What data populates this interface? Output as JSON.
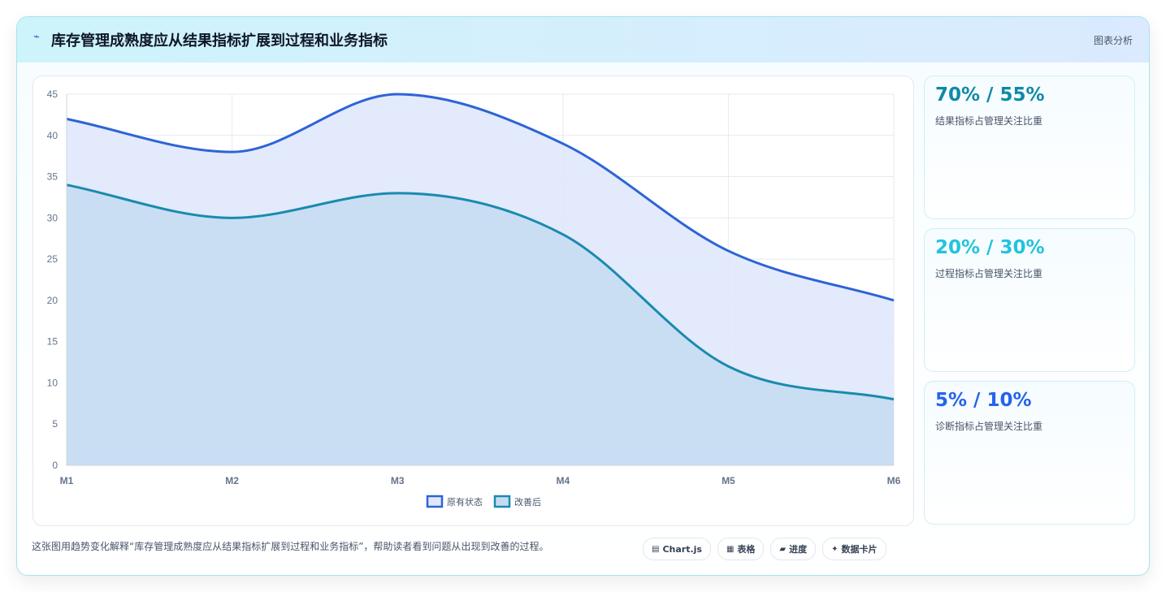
{
  "header": {
    "icon": "lightning-icon",
    "title": "库存管理成熟度应从结果指标扩展到过程和业务指标",
    "right_label": "图表分析"
  },
  "chart_data": {
    "type": "area",
    "categories": [
      "M1",
      "M2",
      "M3",
      "M4",
      "M5",
      "M6"
    ],
    "series": [
      {
        "name": "原有状态",
        "values": [
          42,
          38,
          45,
          39,
          26,
          20
        ],
        "color": "#2e63d6",
        "fill": "#dfe8fb"
      },
      {
        "name": "改善后",
        "values": [
          34,
          30,
          33,
          28,
          12,
          8
        ],
        "color": "#1a8aaf",
        "fill": "#c4dcf1"
      }
    ],
    "ylim": [
      0,
      45
    ],
    "yticks": [
      0,
      5,
      10,
      15,
      20,
      25,
      30,
      35,
      40,
      45
    ],
    "grid": true,
    "legend": "bottom"
  },
  "stats": [
    {
      "value": "70% / 55%",
      "label": "结果指标占管理关注比重",
      "color": "#0e8aa6"
    },
    {
      "value": "20% / 30%",
      "label": "过程指标占管理关注比重",
      "color": "#22c3dd"
    },
    {
      "value": "5% / 10%",
      "label": "诊断指标占管理关注比重",
      "color": "#2563eb"
    }
  ],
  "footnote": "这张图用趋势变化解释“库存管理成熟度应从结果指标扩展到过程和业务指标”，帮助读者看到问题从出现到改善的过程。",
  "tags": [
    {
      "icon": "chart-icon",
      "glyph": "▤",
      "label": "Chart.js"
    },
    {
      "icon": "table-icon",
      "glyph": "▦",
      "label": "表格"
    },
    {
      "icon": "progress-icon",
      "glyph": "▰",
      "label": "进度"
    },
    {
      "icon": "sparkle-icon",
      "glyph": "✦",
      "label": "数据卡片"
    }
  ]
}
